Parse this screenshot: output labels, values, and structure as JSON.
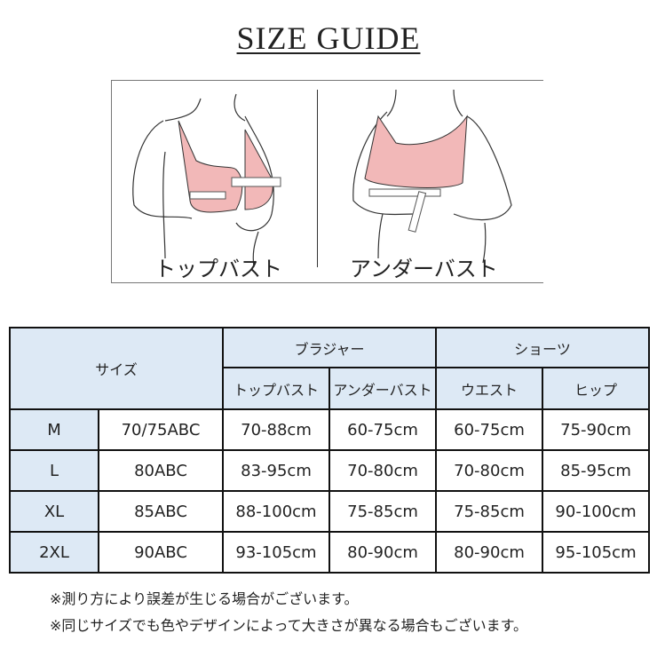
{
  "title": "SIZE GUIDE",
  "illustration": {
    "left_label": "トップバスト",
    "right_label": "アンダーバスト",
    "bra_color": "#f2b8b8"
  },
  "table": {
    "header_color": "#dde9f5",
    "size_header": "サイズ",
    "group_bra": "ブラジャー",
    "group_shorts": "ショーツ",
    "columns": [
      "トップバスト",
      "アンダーバスト",
      "ウエスト",
      "ヒップ"
    ],
    "rows": [
      {
        "size": "M",
        "cup": "70/75ABC",
        "top": "70-88cm",
        "under": "60-75cm",
        "waist": "60-75cm",
        "hip": "75-90cm"
      },
      {
        "size": "L",
        "cup": "80ABC",
        "top": "83-95cm",
        "under": "70-80cm",
        "waist": "70-80cm",
        "hip": "85-95cm"
      },
      {
        "size": "XL",
        "cup": "85ABC",
        "top": "88-100cm",
        "under": "75-85cm",
        "waist": "75-85cm",
        "hip": "90-100cm"
      },
      {
        "size": "2XL",
        "cup": "90ABC",
        "top": "93-105cm",
        "under": "80-90cm",
        "waist": "80-90cm",
        "hip": "95-105cm"
      }
    ]
  },
  "notes": [
    "※測り方により誤差が生じる場合がございます。",
    "※同じサイズでも色やデザインによって大きさが異なる場合もございます。"
  ]
}
